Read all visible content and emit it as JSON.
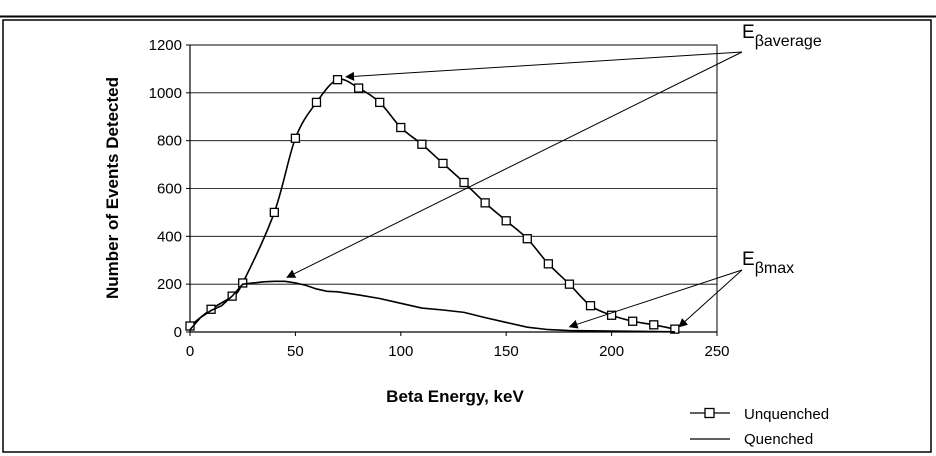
{
  "chart_data": {
    "type": "line",
    "title": "",
    "xlabel": "Beta Energy, keV",
    "ylabel": "Number of Events Detected",
    "xlim": [
      0,
      250
    ],
    "ylim": [
      0,
      1200
    ],
    "xticks": [
      0,
      50,
      100,
      150,
      200,
      250
    ],
    "yticks": [
      0,
      200,
      400,
      600,
      800,
      1000,
      1200
    ],
    "grid": "horizontal",
    "legend_position": "bottom-right",
    "series": [
      {
        "name": "Unquenched",
        "marker": "square",
        "x": [
          0,
          10,
          20,
          25,
          40,
          50,
          60,
          70,
          80,
          90,
          100,
          110,
          120,
          130,
          140,
          150,
          160,
          170,
          180,
          190,
          200,
          210,
          220,
          230
        ],
        "y": [
          25,
          95,
          150,
          205,
          500,
          810,
          960,
          1055,
          1020,
          960,
          855,
          785,
          705,
          625,
          540,
          465,
          390,
          285,
          200,
          110,
          70,
          45,
          30,
          12
        ]
      },
      {
        "name": "Quenched",
        "marker": "none",
        "x": [
          0,
          5,
          10,
          15,
          20,
          25,
          30,
          35,
          40,
          45,
          50,
          55,
          60,
          65,
          70,
          80,
          90,
          100,
          110,
          120,
          130,
          140,
          150,
          160,
          170,
          180,
          190,
          200,
          210,
          220,
          230
        ],
        "y": [
          10,
          60,
          90,
          110,
          150,
          200,
          205,
          210,
          212,
          212,
          205,
          195,
          180,
          170,
          168,
          155,
          140,
          120,
          100,
          92,
          82,
          60,
          40,
          20,
          10,
          6,
          5,
          4,
          3,
          2,
          1
        ]
      }
    ],
    "annotations": [
      {
        "label": "E",
        "subscript": "βaverage",
        "targets": [
          [
            74,
            1050
          ],
          [
            46,
            212
          ]
        ]
      },
      {
        "label": "E",
        "subscript": "βmax",
        "targets": [
          [
            180,
            5
          ],
          [
            232,
            5
          ]
        ]
      }
    ]
  }
}
